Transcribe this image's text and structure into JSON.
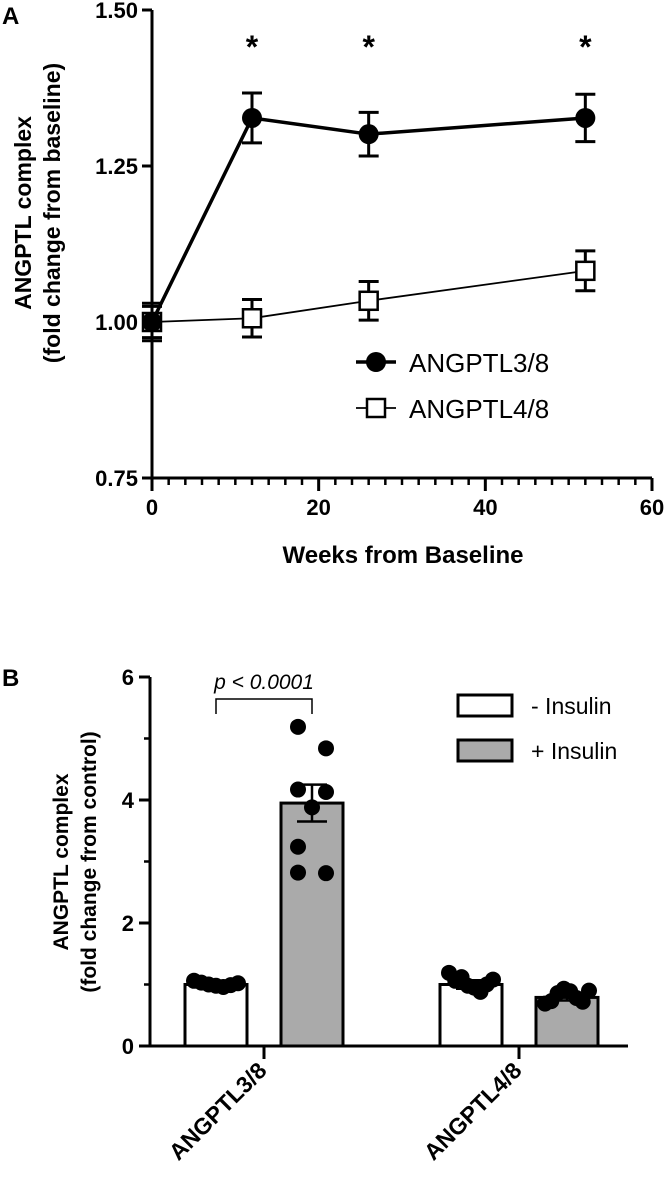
{
  "panelA": {
    "label": "A",
    "chart_data": {
      "type": "line",
      "xlabel": "Weeks from Baseline",
      "ylabel_line1": "ANGPTL complex",
      "ylabel_line2": "(fold change from baseline)",
      "xlim": [
        0,
        60
      ],
      "ylim": [
        0.75,
        1.5
      ],
      "x_ticks": [
        0,
        20,
        40,
        60
      ],
      "y_ticks": [
        0.75,
        1.0,
        1.25,
        1.5
      ],
      "y_tick_labels": [
        "0.75",
        "1.00",
        "1.25",
        "1.50"
      ],
      "x_tick_labels": [
        "0",
        "20",
        "40",
        "60"
      ],
      "x_minor_step": 2,
      "legend_position": "right",
      "series": [
        {
          "name": "ANGPTL3/8",
          "marker": "filled-circle",
          "color": "#000000",
          "x": [
            0,
            12,
            26,
            52
          ],
          "y": [
            1.0,
            1.327,
            1.301,
            1.327
          ],
          "err": [
            0.03,
            0.04,
            0.035,
            0.038
          ]
        },
        {
          "name": "ANGPTL4/8",
          "marker": "open-square",
          "color": "#000000",
          "x": [
            0,
            12,
            26,
            52
          ],
          "y": [
            1.0,
            1.006,
            1.034,
            1.082
          ],
          "err": [
            0.025,
            0.03,
            0.031,
            0.032
          ]
        }
      ],
      "annotations": [
        {
          "text": "*",
          "x": 12
        },
        {
          "text": "*",
          "x": 26
        },
        {
          "text": "*",
          "x": 52
        }
      ]
    }
  },
  "panelB": {
    "label": "B",
    "chart_data": {
      "type": "bar",
      "ylabel_line1": "ANGPTL complex",
      "ylabel_line2": "(fold change from control)",
      "ylim": [
        0,
        6
      ],
      "y_ticks": [
        0,
        2,
        4,
        6
      ],
      "y_tick_labels": [
        "0",
        "2",
        "4",
        "6"
      ],
      "y_minor_step": 1,
      "categories": [
        "ANGPTL3/8",
        "ANGPTL4/8"
      ],
      "legend_position": "top-right",
      "series": [
        {
          "name": "- Insulin",
          "fill": "#ffffff",
          "values": [
            1.0,
            1.0
          ],
          "sem": [
            0.02,
            0.07
          ],
          "points": [
            [
              1.06,
              1.03,
              1.0,
              0.98,
              0.96,
              0.99,
              1.02
            ],
            [
              1.19,
              1.06,
              1.12,
              0.98,
              0.95,
              0.88,
              1.0,
              1.08
            ]
          ]
        },
        {
          "name": "+ Insulin",
          "fill": "#aaaaaa",
          "values": [
            3.95,
            0.79
          ],
          "sem": [
            0.3,
            0.05
          ],
          "points": [
            [
              5.19,
              4.84,
              4.17,
              3.88,
              4.13,
              3.24,
              2.82,
              2.81
            ],
            [
              0.69,
              0.73,
              0.86,
              0.93,
              0.89,
              0.78,
              0.72,
              0.9
            ]
          ]
        }
      ],
      "annotation": {
        "text": "p < 0.0001"
      }
    }
  }
}
